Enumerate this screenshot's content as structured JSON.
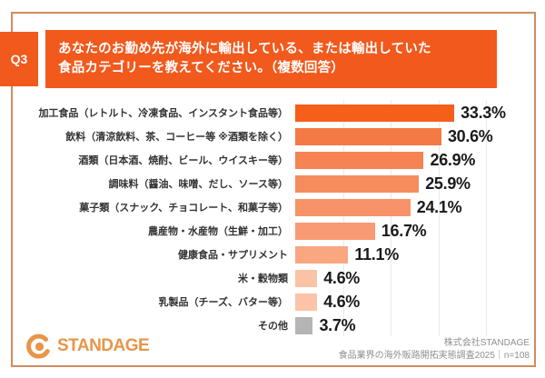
{
  "header": {
    "question_number": "Q3",
    "title_line1": "あなたのお勤め先が海外に輸出している、または輸出していた",
    "title_line2": "食品カテゴリーを教えてください。（複数回答）"
  },
  "chart_data": {
    "type": "bar",
    "orientation": "horizontal",
    "title": "あなたのお勤め先が海外に輸出している、または輸出していた食品カテゴリーを教えてください。（複数回答）",
    "categories": [
      "加工食品（レトルト、冷凍食品、インスタント食品等）",
      "飲料（清涼飲料、茶、コーヒー等 ※酒類を除く）",
      "酒類（日本酒、焼酎、ビール、ウイスキー等）",
      "調味料（醤油、味噌、だし、ソース等）",
      "菓子類（スナック、チョコレート、和菓子等）",
      "農産物・水産物（生鮮・加工）",
      "健康食品・サプリメント",
      "米・穀物類",
      "乳製品（チーズ、バター等）",
      "その他"
    ],
    "values": [
      33.3,
      30.6,
      26.9,
      25.9,
      24.1,
      16.7,
      11.1,
      4.6,
      4.6,
      3.7
    ],
    "value_labels": [
      "33.3%",
      "30.6%",
      "26.9%",
      "25.9%",
      "24.1%",
      "16.7%",
      "11.1%",
      "4.6%",
      "4.6%",
      "3.7%"
    ],
    "bar_colors": [
      "#F55F19",
      "#F47A45",
      "#F58353",
      "#F68B5E",
      "#F79269",
      "#F89B74",
      "#F9A681",
      "#FBC2A5",
      "#FBC4A9",
      "#B5B5B5"
    ],
    "xlim": [
      0,
      50
    ],
    "grid_percents": [
      10,
      20,
      30,
      40
    ],
    "grid_on": true,
    "legend": "none",
    "xlabel": "",
    "ylabel": ""
  },
  "footer": {
    "logo_text": "STANDAGE",
    "source_line1": "株式会社STANDAGE",
    "source_line2": "食品業界の海外販路開拓実態調査2025｜n=108"
  },
  "colors": {
    "accent_orange": "#F2591D",
    "frame_border": "#D08C60",
    "logo_orange": "#E8954A",
    "other_bar_gray": "#B5B5B5",
    "gridline": "#EAEAEA"
  }
}
